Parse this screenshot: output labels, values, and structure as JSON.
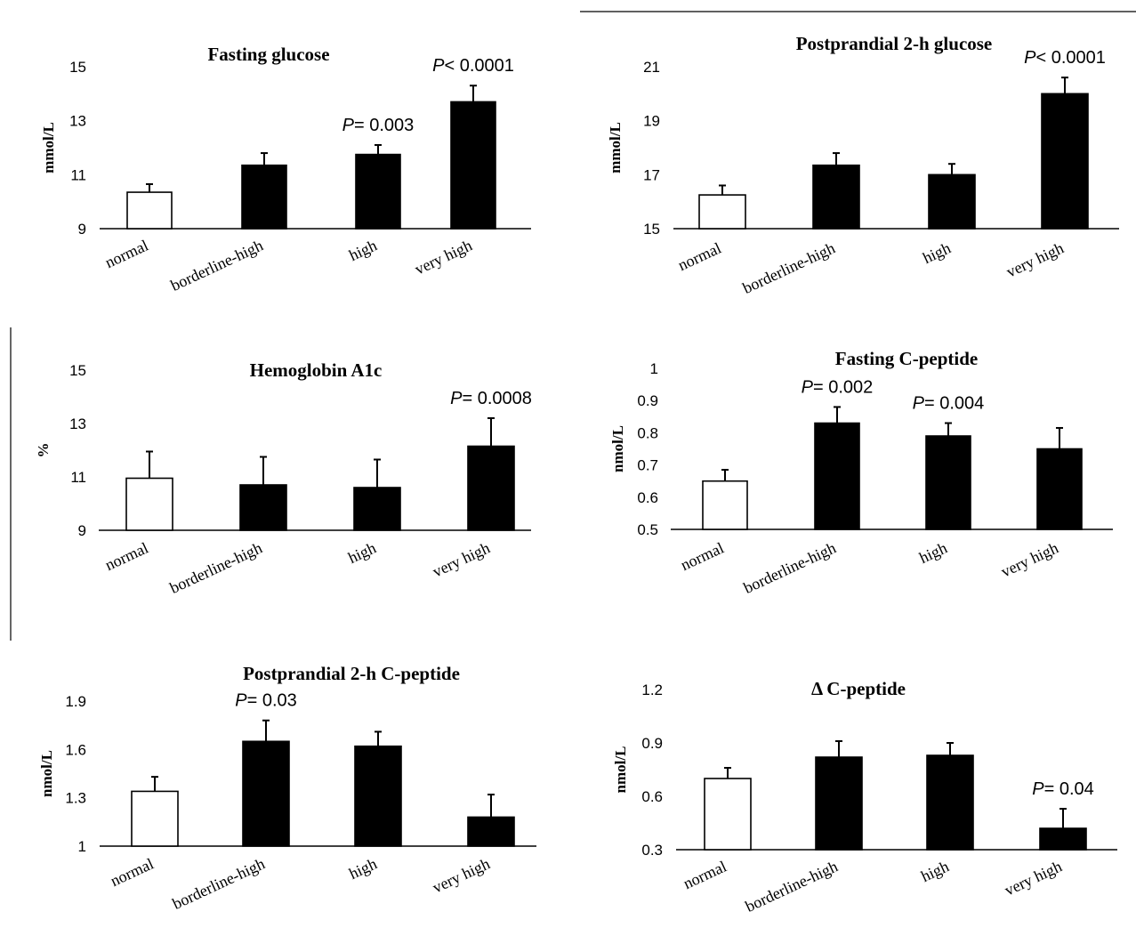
{
  "figure": {
    "p_symbol": "P",
    "colors": {
      "white_bar": "#ffffff",
      "black_bar": "#000000",
      "axis": "#000000"
    }
  },
  "chart_data": [
    {
      "type": "bar",
      "title": "Fasting glucose",
      "ylabel": "mmol/L",
      "categories": [
        "normal",
        "borderline-high",
        "high",
        "very high"
      ],
      "values": [
        10.35,
        11.35,
        11.75,
        13.7
      ],
      "errors": [
        0.3,
        0.45,
        0.35,
        0.6
      ],
      "fill": [
        "white",
        "black",
        "black",
        "black"
      ],
      "ylim": [
        9,
        15
      ],
      "yticks": [
        9,
        11,
        13,
        15
      ],
      "tick_labels": [
        "9",
        "11",
        "13",
        "15"
      ],
      "annotations": [
        "",
        "",
        "= 0.003",
        "< 0.0001"
      ]
    },
    {
      "type": "bar",
      "title": "Postprandial 2-h glucose",
      "ylabel": "mmol/L",
      "categories": [
        "normal",
        "borderline-high",
        "high",
        "very high"
      ],
      "values": [
        16.25,
        17.35,
        17.0,
        20.0
      ],
      "errors": [
        0.35,
        0.45,
        0.4,
        0.6
      ],
      "fill": [
        "white",
        "black",
        "black",
        "black"
      ],
      "ylim": [
        15,
        21
      ],
      "yticks": [
        15,
        17,
        19,
        21
      ],
      "tick_labels": [
        "15",
        "17",
        "19",
        "21"
      ],
      "annotations": [
        "",
        "",
        "",
        "< 0.0001"
      ]
    },
    {
      "type": "bar",
      "title": "Hemoglobin A1c",
      "ylabel": "%",
      "categories": [
        "normal",
        "borderline-high",
        "high",
        "very high"
      ],
      "values": [
        10.95,
        10.7,
        10.6,
        12.15
      ],
      "errors": [
        1.0,
        1.05,
        1.05,
        1.05
      ],
      "fill": [
        "white",
        "black",
        "black",
        "black"
      ],
      "ylim": [
        9,
        15
      ],
      "yticks": [
        9,
        11,
        13,
        15
      ],
      "tick_labels": [
        "9",
        "11",
        "13",
        "15"
      ],
      "annotations": [
        "",
        "",
        "",
        "= 0.0008"
      ]
    },
    {
      "type": "bar",
      "title": "Fasting C-peptide",
      "ylabel": "nmol/L",
      "categories": [
        "normal",
        "borderline-high",
        "high",
        "very high"
      ],
      "values": [
        0.65,
        0.83,
        0.79,
        0.75
      ],
      "errors": [
        0.035,
        0.05,
        0.04,
        0.065
      ],
      "fill": [
        "white",
        "black",
        "black",
        "black"
      ],
      "ylim": [
        0.5,
        1.0
      ],
      "yticks": [
        0.5,
        0.6,
        0.7,
        0.8,
        0.9,
        1.0
      ],
      "tick_labels": [
        "0.5",
        "0.6",
        "0.7",
        "0.8",
        "0.9",
        "1"
      ],
      "annotations": [
        "",
        "= 0.002",
        "= 0.004",
        ""
      ]
    },
    {
      "type": "bar",
      "title": "Postprandial 2-h C-peptide",
      "ylabel": "nmol/L",
      "categories": [
        "normal",
        "borderline-high",
        "high",
        "very high"
      ],
      "values": [
        1.34,
        1.65,
        1.62,
        1.18
      ],
      "errors": [
        0.09,
        0.13,
        0.09,
        0.14
      ],
      "fill": [
        "white",
        "black",
        "black",
        "black"
      ],
      "ylim": [
        1,
        1.9
      ],
      "yticks": [
        1,
        1.3,
        1.6,
        1.9
      ],
      "tick_labels": [
        "1",
        "1.3",
        "1.6",
        "1.9"
      ],
      "annotations": [
        "",
        "= 0.03",
        "",
        ""
      ]
    },
    {
      "type": "bar",
      "title": "Δ C-peptide",
      "ylabel": "nmol/L",
      "categories": [
        "normal",
        "borderline-high",
        "high",
        "very high"
      ],
      "values": [
        0.7,
        0.82,
        0.83,
        0.42
      ],
      "errors": [
        0.06,
        0.09,
        0.07,
        0.11
      ],
      "fill": [
        "white",
        "black",
        "black",
        "black"
      ],
      "ylim": [
        0.3,
        1.2
      ],
      "yticks": [
        0.3,
        0.6,
        0.9,
        1.2
      ],
      "tick_labels": [
        "0.3",
        "0.6",
        "0.9",
        "1.2"
      ],
      "annotations": [
        "",
        "",
        "",
        "= 0.04"
      ]
    }
  ]
}
